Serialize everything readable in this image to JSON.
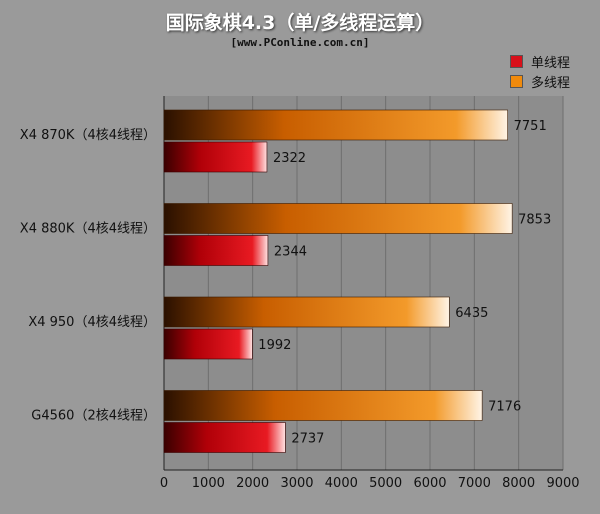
{
  "title": "国际象棋4.3（单/多线程运算）",
  "source": "[www.PConline.com.cn]",
  "colors": {
    "background": "#9a9a9a",
    "plot_bg": "#8d8d8d",
    "grid": "#6e6e6e",
    "single": "#d8101a",
    "multi": "#f08a0c"
  },
  "chart_data": {
    "type": "bar",
    "orientation": "horizontal",
    "categories": [
      "X4 870K（4核4线程）",
      "X4 880K（4核4线程）",
      "X4 950（4核4线程）",
      "G4560（2核4线程）"
    ],
    "series": [
      {
        "name": "单线程",
        "values": [
          2322,
          2344,
          1992,
          2737
        ]
      },
      {
        "name": "多线程",
        "values": [
          7751,
          7853,
          6435,
          7176
        ]
      }
    ],
    "xlim": [
      0,
      9000
    ],
    "xticks": [
      0,
      1000,
      2000,
      3000,
      4000,
      5000,
      6000,
      7000,
      8000,
      9000
    ],
    "grid": true,
    "legend_position": "top-right"
  }
}
